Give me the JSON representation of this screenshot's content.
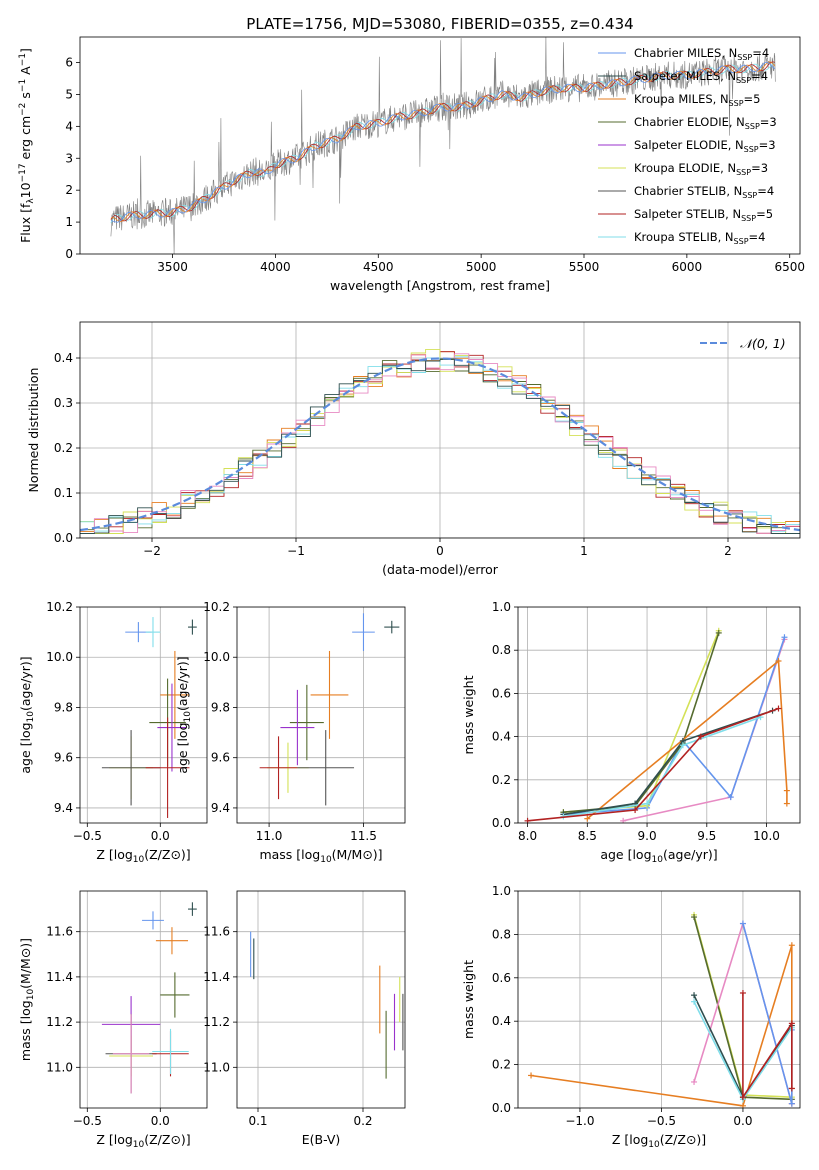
{
  "title": "PLATE=1756, MJD=53080, FIBERID=0355, z=0.434",
  "series_colors": [
    "#6495ed",
    "#2f4f4f",
    "#e67e22",
    "#556b2f",
    "#9932cc",
    "#d4e157",
    "#555555",
    "#b22222",
    "#80deea",
    "#e78ac3"
  ],
  "legend_entries": [
    {
      "name": "Chabrier MILES, N",
      "sub": "SSP",
      "tail": "=4",
      "color": "#6495ed"
    },
    {
      "name": "Salpeter MILES, N",
      "sub": "SSP",
      "tail": "=4",
      "color": "#2f4f4f"
    },
    {
      "name": "Kroupa MILES, N",
      "sub": "SSP",
      "tail": "=5",
      "color": "#e67e22"
    },
    {
      "name": "Chabrier ELODIE, N",
      "sub": "SSP",
      "tail": "=3",
      "color": "#556b2f"
    },
    {
      "name": "Salpeter ELODIE, N",
      "sub": "SSP",
      "tail": "=3",
      "color": "#9932cc"
    },
    {
      "name": "Kroupa ELODIE, N",
      "sub": "SSP",
      "tail": "=3",
      "color": "#d4e157"
    },
    {
      "name": "Chabrier STELIB, N",
      "sub": "SSP",
      "tail": "=4",
      "color": "#555555"
    },
    {
      "name": "Salpeter STELIB, N",
      "sub": "SSP",
      "tail": "=5",
      "color": "#b22222"
    },
    {
      "name": "Kroupa STELIB, N",
      "sub": "SSP",
      "tail": "=4",
      "color": "#80deea"
    }
  ],
  "chart_data": [
    {
      "id": "spectrum",
      "type": "line",
      "xlabel": "wavelength [Angstrom, rest frame]",
      "ylabel": "Flux [f",
      "xlim": [
        3050,
        6550
      ],
      "ylim": [
        0,
        6.8
      ],
      "xticks": [
        3500,
        4000,
        4500,
        5000,
        5500,
        6000,
        6500
      ],
      "yticks": [
        0,
        1,
        2,
        3,
        4,
        5,
        6
      ],
      "model_points": [
        [
          3200,
          1.0
        ],
        [
          3220,
          1.1
        ],
        [
          3300,
          1.2
        ],
        [
          3400,
          1.25
        ],
        [
          3500,
          1.3
        ],
        [
          3550,
          1.4
        ],
        [
          3600,
          1.5
        ],
        [
          3700,
          1.9
        ],
        [
          3800,
          2.3
        ],
        [
          3900,
          2.6
        ],
        [
          3950,
          2.5
        ],
        [
          4000,
          2.8
        ],
        [
          4100,
          3.0
        ],
        [
          4200,
          3.4
        ],
        [
          4300,
          3.6
        ],
        [
          4400,
          4.0
        ],
        [
          4500,
          4.1
        ],
        [
          4600,
          4.3
        ],
        [
          4700,
          4.4
        ],
        [
          4800,
          4.6
        ],
        [
          4900,
          4.6
        ],
        [
          5000,
          4.8
        ],
        [
          5100,
          5.0
        ],
        [
          5200,
          4.9
        ],
        [
          5300,
          5.1
        ],
        [
          5400,
          5.2
        ],
        [
          5500,
          5.2
        ],
        [
          5600,
          5.3
        ],
        [
          5700,
          5.4
        ],
        [
          5800,
          5.5
        ],
        [
          5900,
          5.6
        ],
        [
          6000,
          5.6
        ],
        [
          6100,
          5.7
        ],
        [
          6200,
          5.8
        ],
        [
          6300,
          5.8
        ],
        [
          6400,
          5.9
        ]
      ],
      "grid": false,
      "legend": "upper right"
    },
    {
      "id": "hist",
      "type": "bar",
      "xlabel": "(data-model)/error",
      "ylabel": "Normed distribution",
      "xlim": [
        -2.5,
        2.5
      ],
      "ylim": [
        0,
        0.48
      ],
      "xticks": [
        -2,
        -1,
        0,
        1,
        2
      ],
      "yticks": [
        0.0,
        0.1,
        0.2,
        0.3,
        0.4
      ],
      "gauss_label": "N(0,1)",
      "grid": true,
      "legend": "upper right"
    },
    {
      "id": "age_Z",
      "type": "scatter",
      "xlabel": "Z [log",
      "ylabel": "age  [log",
      "xlim": [
        -0.55,
        0.32
      ],
      "ylim": [
        9.34,
        10.2
      ],
      "xticks": [
        -0.5,
        0.0
      ],
      "yticks": [
        9.4,
        9.6,
        9.8,
        10.0,
        10.2
      ],
      "points": [
        [
          -0.15,
          10.1,
          0.18,
          0.08
        ],
        [
          0.22,
          10.12,
          0.06,
          0.06
        ],
        [
          0.1,
          9.85,
          0.2,
          0.35
        ],
        [
          0.05,
          9.74,
          0.25,
          0.35
        ],
        [
          0.08,
          9.72,
          0.2,
          0.35
        ],
        [
          -0.2,
          9.56,
          0.3,
          0.25
        ],
        [
          -0.2,
          9.56,
          0.4,
          0.3
        ],
        [
          0.05,
          9.56,
          0.3,
          0.4
        ],
        [
          -0.05,
          10.1,
          0.1,
          0.12
        ]
      ]
    },
    {
      "id": "age_mass",
      "type": "scatter",
      "xlabel": "mass [log",
      "ylabel": "age  [log",
      "xlim": [
        10.83,
        11.72
      ],
      "ylim": [
        9.34,
        10.2
      ],
      "xticks": [
        11.0,
        11.5
      ],
      "yticks": [
        9.4,
        9.6,
        9.8,
        10.0,
        10.2
      ],
      "points": [
        [
          11.5,
          10.1,
          0.12,
          0.15
        ],
        [
          11.65,
          10.12,
          0.08,
          0.05
        ],
        [
          11.32,
          9.85,
          0.2,
          0.35
        ],
        [
          11.2,
          9.74,
          0.18,
          0.3
        ],
        [
          11.15,
          9.72,
          0.18,
          0.3
        ],
        [
          11.1,
          9.56,
          0.22,
          0.2
        ],
        [
          11.3,
          9.56,
          0.3,
          0.3
        ],
        [
          11.05,
          9.56,
          0.2,
          0.25
        ]
      ]
    },
    {
      "id": "weight_age",
      "type": "line",
      "xlabel": "age  [log",
      "ylabel": "mass weight",
      "xlim": [
        7.92,
        10.28
      ],
      "ylim": [
        0,
        1.0
      ],
      "xticks": [
        8.0,
        8.5,
        9.0,
        9.5,
        10.0
      ],
      "yticks": [
        0.0,
        0.2,
        0.4,
        0.6,
        0.8,
        1.0
      ],
      "series": [
        {
          "color": "#e78ac3",
          "x": [
            8.8,
            9.7,
            10.15
          ],
          "y": [
            0.01,
            0.12,
            0.85
          ]
        },
        {
          "color": "#6495ed",
          "x": [
            8.3,
            9.0,
            9.3,
            9.7,
            10.15
          ],
          "y": [
            0.04,
            0.07,
            0.38,
            0.12,
            0.86
          ]
        },
        {
          "color": "#d4e157",
          "x": [
            8.3,
            9.0,
            9.6
          ],
          "y": [
            0.05,
            0.08,
            0.89
          ]
        },
        {
          "color": "#556b2f",
          "x": [
            8.3,
            8.9,
            9.3,
            9.6
          ],
          "y": [
            0.05,
            0.08,
            0.37,
            0.88
          ]
        },
        {
          "color": "#e67e22",
          "x": [
            8.5,
            10.1,
            10.17,
            10.17
          ],
          "y": [
            0.02,
            0.75,
            0.15,
            0.09
          ]
        },
        {
          "color": "#2f4f4f",
          "x": [
            8.3,
            8.9,
            9.3,
            10.05
          ],
          "y": [
            0.04,
            0.09,
            0.38,
            0.52
          ]
        },
        {
          "color": "#80deea",
          "x": [
            8.3,
            9.0,
            9.3,
            9.95
          ],
          "y": [
            0.03,
            0.09,
            0.36,
            0.49
          ]
        },
        {
          "color": "#b22222",
          "x": [
            8.0,
            8.9,
            9.45,
            10.1
          ],
          "y": [
            0.01,
            0.06,
            0.4,
            0.53
          ]
        }
      ]
    },
    {
      "id": "mass_Z",
      "type": "scatter",
      "xlabel": "Z [log",
      "ylabel": "mass [log",
      "xlim": [
        -0.55,
        0.32
      ],
      "ylim": [
        10.82,
        11.78
      ],
      "xticks": [
        -0.5,
        0.0
      ],
      "yticks": [
        11.0,
        11.2,
        11.4,
        11.6
      ],
      "points": [
        [
          -0.05,
          11.65,
          0.15,
          0.08
        ],
        [
          0.22,
          11.7,
          0.06,
          0.06
        ],
        [
          0.08,
          11.56,
          0.22,
          0.12
        ],
        [
          0.1,
          11.32,
          0.2,
          0.2
        ],
        [
          -0.2,
          11.19,
          0.4,
          0.25
        ],
        [
          -0.2,
          11.05,
          0.3,
          0.18
        ],
        [
          -0.2,
          11.06,
          0.35,
          0.35
        ],
        [
          0.07,
          11.06,
          0.25,
          0.2
        ],
        [
          0.07,
          11.07,
          0.25,
          0.2
        ],
        [
          -0.2,
          11.06,
          0.25,
          0.35
        ]
      ]
    },
    {
      "id": "mass_ebv",
      "type": "scatter",
      "xlabel": "E(B-V)",
      "ylabel": "",
      "xlim": [
        0.08,
        0.24
      ],
      "ylim": [
        10.82,
        11.78
      ],
      "xticks": [
        0.1,
        0.2
      ],
      "yticks": [
        11.0,
        11.2,
        11.4,
        11.6
      ],
      "points": [
        [
          0.093,
          11.5,
          0.0,
          0.2
        ],
        [
          0.096,
          11.48,
          0.0,
          0.18
        ],
        [
          0.216,
          11.3,
          0.0,
          0.3
        ],
        [
          0.222,
          11.1,
          0.0,
          0.3
        ],
        [
          0.23,
          11.2,
          0.0,
          0.25
        ],
        [
          0.235,
          11.3,
          0.0,
          0.2
        ],
        [
          0.238,
          11.2,
          0.0,
          0.25
        ]
      ]
    },
    {
      "id": "weight_Z",
      "type": "line",
      "xlabel": "Z [log",
      "ylabel": "mass weight",
      "xlim": [
        -1.38,
        0.35
      ],
      "ylim": [
        0,
        1.0
      ],
      "xticks": [
        -1.0,
        -0.5,
        0.0
      ],
      "yticks": [
        0.0,
        0.2,
        0.4,
        0.6,
        0.8,
        1.0
      ],
      "series": [
        {
          "color": "#e67e22",
          "x": [
            -1.3,
            0.0,
            0.3,
            0.3,
            0.3
          ],
          "y": [
            0.15,
            0.01,
            0.75,
            0.09,
            0.02
          ]
        },
        {
          "color": "#d4e157",
          "x": [
            -0.3,
            0.0,
            0.3
          ],
          "y": [
            0.89,
            0.06,
            0.05
          ]
        },
        {
          "color": "#556b2f",
          "x": [
            -0.3,
            0.0,
            0.3
          ],
          "y": [
            0.88,
            0.05,
            0.04
          ]
        },
        {
          "color": "#e78ac3",
          "x": [
            -0.3,
            0.0,
            0.3
          ],
          "y": [
            0.12,
            0.85,
            0.02
          ]
        },
        {
          "color": "#6495ed",
          "x": [
            0.0,
            0.3,
            0.3
          ],
          "y": [
            0.85,
            0.02,
            0.36
          ]
        },
        {
          "color": "#2f4f4f",
          "x": [
            -0.3,
            0.0,
            0.3
          ],
          "y": [
            0.52,
            0.05,
            0.38
          ]
        },
        {
          "color": "#80deea",
          "x": [
            -0.3,
            0.0,
            0.3
          ],
          "y": [
            0.49,
            0.04,
            0.37
          ]
        },
        {
          "color": "#b22222",
          "x": [
            0.0,
            0.0,
            0.3,
            0.3
          ],
          "y": [
            0.53,
            0.05,
            0.39,
            0.09
          ]
        }
      ]
    }
  ]
}
